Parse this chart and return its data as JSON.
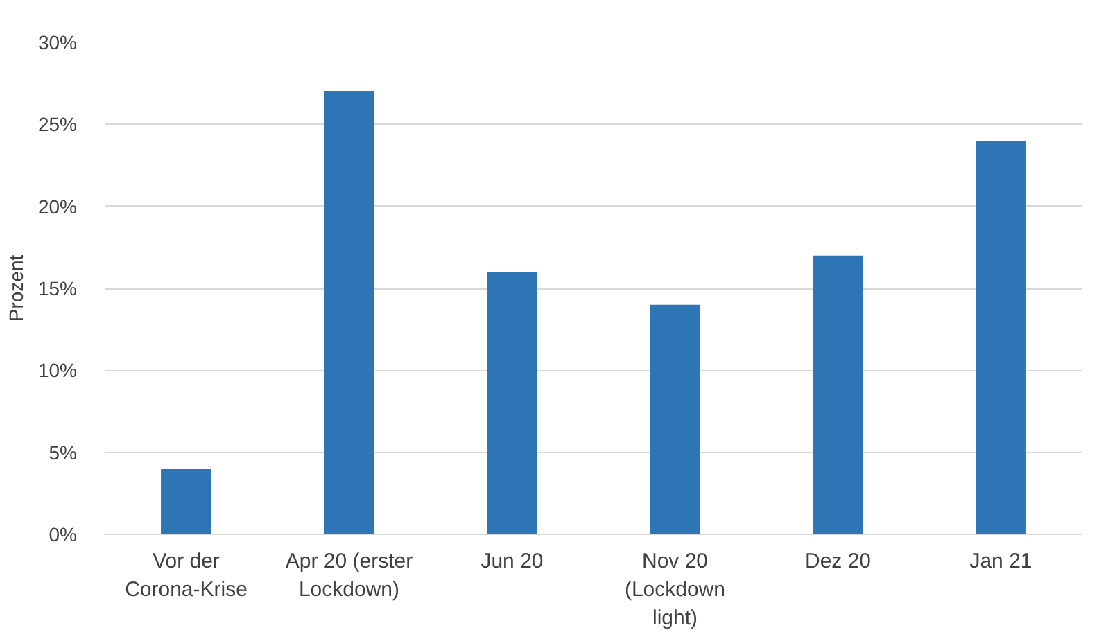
{
  "chart_data": {
    "type": "bar",
    "ylabel": "Prozent",
    "categories": [
      "Vor der\nCorona-Krise",
      "Apr 20 (erster\nLockdown)",
      "Jun 20",
      "Nov 20\n(Lockdown\nlight)",
      "Dez 20",
      "Jan 21"
    ],
    "values": [
      4,
      27,
      16,
      14,
      17,
      24
    ],
    "color": "#2e75b6",
    "ylim": [
      0,
      30
    ],
    "yticks": [
      {
        "value": 0,
        "label": "0%"
      },
      {
        "value": 5,
        "label": "5%"
      },
      {
        "value": 10,
        "label": "10%"
      },
      {
        "value": 15,
        "label": "15%"
      },
      {
        "value": 20,
        "label": "20%"
      },
      {
        "value": 25,
        "label": "25%"
      },
      {
        "value": 30,
        "label": "30%"
      }
    ],
    "grid": "y"
  }
}
